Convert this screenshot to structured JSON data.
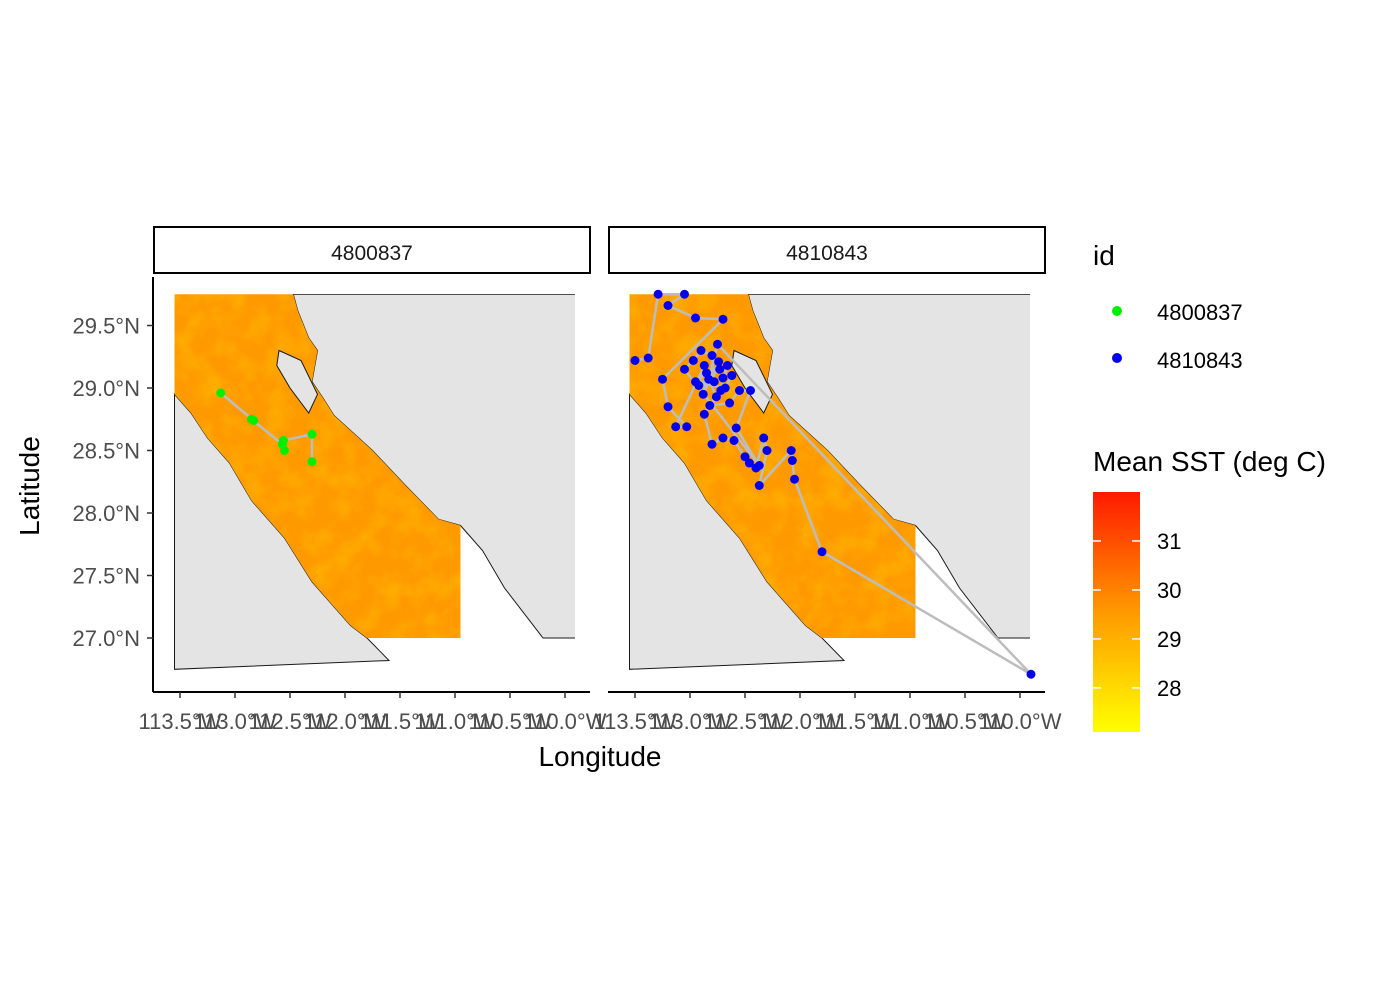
{
  "colors": {
    "land": "#e4e4e4",
    "coast": "#1a1a1a",
    "track": "#bdbdbd",
    "sst_low": "#ffff00",
    "sst_mid": "#ff9900",
    "sst_high": "#ff1a00"
  },
  "chart_data": {
    "type": "scatter",
    "title": "",
    "xlabel": "Longitude",
    "ylabel": "Latitude",
    "x_ticks": [
      "113.5°W",
      "113.0°W",
      "112.5°W",
      "112.0°W",
      "111.5°W",
      "111.0°W",
      "110.5°W",
      "110.0°W"
    ],
    "y_ticks": [
      "27.0°N",
      "27.5°N",
      "28.0°N",
      "28.5°N",
      "29.0°N",
      "29.5°N"
    ],
    "xlim": [
      -113.75,
      -109.9
    ],
    "ylim": [
      26.6,
      29.8
    ],
    "sst_extent": {
      "lon": [
        -113.55,
        -110.95
      ],
      "lat": [
        27.0,
        29.75
      ]
    },
    "legend_id_title": "id",
    "legend_sst_title": "Mean SST (deg C)",
    "sst_breaks": [
      "31",
      "30",
      "29",
      "28"
    ],
    "sst_range": [
      27.1,
      32.0
    ],
    "panels": [
      {
        "strip": "4800837",
        "id": "4800837",
        "color": "#00ee00",
        "points": [
          [
            -113.13,
            28.96
          ],
          [
            -112.83,
            28.74
          ],
          [
            -112.85,
            28.75
          ],
          [
            -112.57,
            28.55
          ],
          [
            -112.55,
            28.5
          ],
          [
            -112.56,
            28.58
          ],
          [
            -112.3,
            28.63
          ],
          [
            -112.3,
            28.41
          ]
        ]
      },
      {
        "strip": "4810843",
        "id": "4810843",
        "color": "#0000ee",
        "points": [
          [
            -113.5,
            29.22
          ],
          [
            -113.38,
            29.24
          ],
          [
            -113.29,
            29.75
          ],
          [
            -113.05,
            29.75
          ],
          [
            -113.2,
            29.66
          ],
          [
            -112.95,
            29.56
          ],
          [
            -112.7,
            29.55
          ],
          [
            -113.25,
            29.07
          ],
          [
            -113.2,
            28.85
          ],
          [
            -113.03,
            28.69
          ],
          [
            -113.13,
            28.69
          ],
          [
            -112.87,
            29.18
          ],
          [
            -112.92,
            29.02
          ],
          [
            -112.73,
            29.15
          ],
          [
            -112.66,
            29.18
          ],
          [
            -112.72,
            28.98
          ],
          [
            -112.87,
            28.79
          ],
          [
            -112.8,
            28.55
          ],
          [
            -112.7,
            28.6
          ],
          [
            -112.6,
            28.58
          ],
          [
            -112.5,
            28.45
          ],
          [
            -112.46,
            28.4
          ],
          [
            -112.4,
            28.36
          ],
          [
            -112.33,
            28.6
          ],
          [
            -112.3,
            28.5
          ],
          [
            -112.37,
            28.22
          ],
          [
            -112.08,
            28.5
          ],
          [
            -112.07,
            28.42
          ],
          [
            -112.05,
            28.27
          ],
          [
            -111.8,
            27.69
          ],
          [
            -109.9,
            26.71
          ],
          [
            -112.75,
            29.35
          ],
          [
            -112.83,
            29.07
          ],
          [
            -112.76,
            28.93
          ],
          [
            -112.82,
            28.86
          ],
          [
            -112.64,
            28.88
          ],
          [
            -112.55,
            28.98
          ],
          [
            -112.45,
            28.98
          ],
          [
            -112.58,
            28.68
          ],
          [
            -112.37,
            28.38
          ],
          [
            -113.05,
            29.15
          ],
          [
            -112.97,
            29.22
          ],
          [
            -112.9,
            29.3
          ],
          [
            -112.8,
            29.26
          ],
          [
            -112.78,
            29.05
          ],
          [
            -112.62,
            29.1
          ],
          [
            -112.68,
            29.0
          ],
          [
            -112.95,
            29.05
          ],
          [
            -112.85,
            29.12
          ],
          [
            -112.88,
            28.95
          ],
          [
            -112.74,
            29.21
          ],
          [
            -112.7,
            29.08
          ]
        ]
      }
    ]
  }
}
